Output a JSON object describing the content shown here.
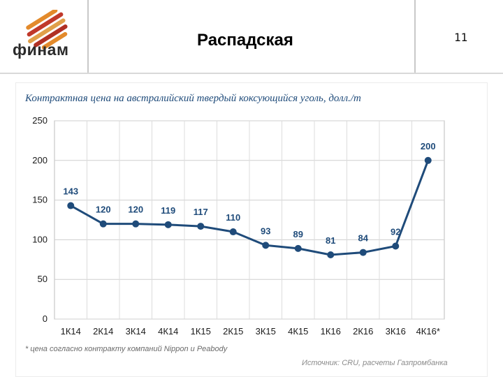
{
  "slide": {
    "logo_text": "финам",
    "title": "Распадская",
    "page_number": "11"
  },
  "chart_data": {
    "type": "line",
    "title": "Контрактная цена на австралийский твердый коксующийся уголь, долл./т",
    "categories": [
      "1К14",
      "2К14",
      "3К14",
      "4К14",
      "1К15",
      "2К15",
      "3К15",
      "4К15",
      "1К16",
      "2К16",
      "3К16",
      "4К16*"
    ],
    "values": [
      143,
      120,
      120,
      119,
      117,
      110,
      93,
      89,
      81,
      84,
      92,
      200
    ],
    "yticks": [
      0,
      50,
      100,
      150,
      200,
      250
    ],
    "ylim": [
      0,
      250
    ],
    "grid": true,
    "line_color": "#1f4b7a",
    "footnote": "* цена согласно контракту компаний Nippon и Peabody",
    "source": "Источник: CRU, расчеты Газпромбанка"
  }
}
